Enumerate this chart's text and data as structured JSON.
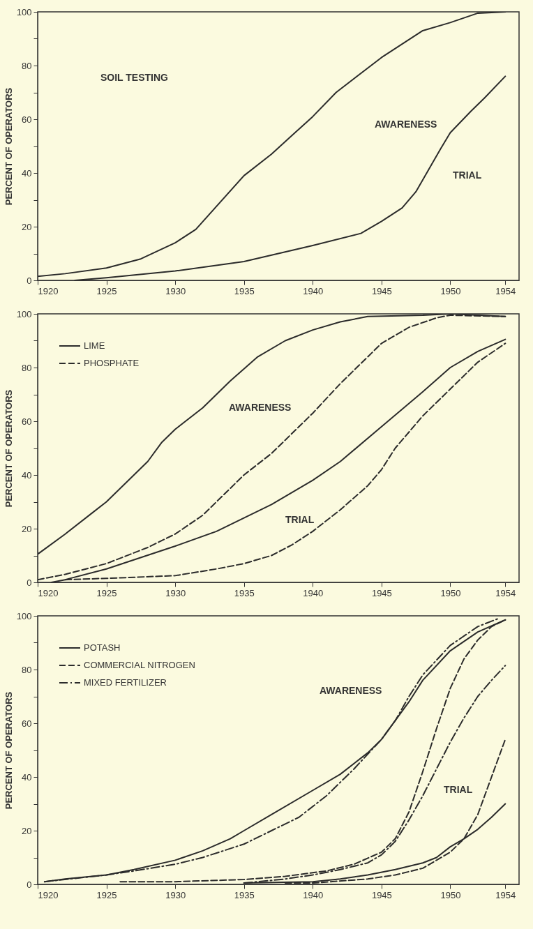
{
  "chart_data": [
    {
      "type": "line",
      "ylabel": "PERCENT OF OPERATORS",
      "xlim": [
        1920,
        1955
      ],
      "xticks": [
        1920,
        1925,
        1930,
        1935,
        1940,
        1945,
        1950,
        1954
      ],
      "ylim": [
        0,
        100
      ],
      "yticks": [
        0,
        {
          "value": 10,
          "label": null
        },
        20,
        {
          "value": 30,
          "label": null
        },
        40,
        {
          "value": 50,
          "label": null
        },
        60,
        {
          "value": 70,
          "label": null
        },
        80,
        {
          "value": 90,
          "label": null
        },
        100
      ],
      "annotations": [
        "SOIL TESTING",
        "AWARENESS",
        "TRIAL"
      ],
      "series": [
        {
          "color": "#2b2b2b",
          "line_style": "solid",
          "x": [
            1920,
            1922,
            1925,
            1927.5,
            1930,
            1931.5,
            1935,
            1937,
            1938.5,
            1940,
            1941.7,
            1945,
            1948,
            1950,
            1952,
            1954
          ],
          "values": [
            1.5,
            2.5,
            4.6,
            8,
            14,
            19,
            39,
            47,
            54,
            61,
            70,
            83,
            93,
            96,
            99.5,
            100
          ]
        },
        {
          "color": "#2b2b2b",
          "line_style": "solid",
          "x": [
            1922.7,
            1925,
            1930,
            1935,
            1940,
            1943.5,
            1945,
            1946.5,
            1947.5,
            1949.3,
            1950,
            1951.5,
            1952.5,
            1954
          ],
          "values": [
            0,
            1,
            3.5,
            7,
            13,
            17.5,
            22,
            27,
            33,
            49,
            55,
            63,
            68,
            76
          ]
        }
      ]
    },
    {
      "type": "line",
      "ylabel": "PERCENT OF OPERATORS",
      "legend": "top left",
      "xlim": [
        1920,
        1955
      ],
      "xticks": [
        1920,
        1925,
        1930,
        1935,
        1940,
        1945,
        1950,
        1954
      ],
      "ylim": [
        0,
        100
      ],
      "yticks": [
        0,
        {
          "value": 10,
          "label": null
        },
        20,
        {
          "value": 30,
          "label": null
        },
        40,
        {
          "value": 50,
          "label": null
        },
        60,
        {
          "value": 70,
          "label": null
        },
        80,
        {
          "value": 90,
          "label": null
        },
        100
      ],
      "annotations": [
        "AWARENESS",
        "TRIAL"
      ],
      "series": [
        {
          "name": "LIME",
          "color": "#2b2b2b",
          "line_style": "solid",
          "x": [
            1920,
            1922,
            1924,
            1925,
            1926,
            1928,
            1929,
            1930,
            1932,
            1934,
            1936,
            1938,
            1940,
            1942,
            1944,
            1948,
            1950,
            1954
          ],
          "values": [
            10.5,
            18,
            26,
            30,
            35,
            45,
            52,
            57,
            65,
            75,
            84,
            90,
            94,
            97,
            99,
            99.5,
            100,
            99
          ]
        },
        {
          "name": "PHOSPHATE",
          "color": "#2b2b2b",
          "line_style": "dashed",
          "x": [
            1920,
            1922,
            1925,
            1928,
            1930,
            1932,
            1934,
            1935,
            1937,
            1940,
            1942,
            1944,
            1945,
            1947,
            1949,
            1950,
            1954
          ],
          "values": [
            1,
            3,
            7,
            13,
            18,
            25,
            35,
            40,
            48,
            63,
            74,
            84,
            89,
            95,
            98.5,
            99.5,
            99
          ]
        },
        {
          "color": "#2b2b2b",
          "line_style": "solid",
          "x": [
            1921,
            1922,
            1925,
            1930,
            1933,
            1935,
            1937,
            1940,
            1942,
            1945,
            1948,
            1950,
            1952,
            1954
          ],
          "values": [
            0,
            1,
            5,
            13.5,
            19,
            24,
            29,
            38,
            45,
            58,
            71,
            80,
            86,
            90.5
          ]
        },
        {
          "color": "#2b2b2b",
          "line_style": "dashed",
          "x": [
            1922,
            1925,
            1930,
            1933,
            1935,
            1937,
            1938.5,
            1940,
            1942,
            1944,
            1945,
            1946,
            1948,
            1950,
            1952,
            1954
          ],
          "values": [
            1,
            1.5,
            2.5,
            5,
            7,
            10,
            14,
            19,
            27,
            36,
            42,
            50,
            62,
            72,
            82,
            89
          ]
        }
      ]
    },
    {
      "type": "line",
      "ylabel": "PERCENT OF OPERATORS",
      "legend": "top left",
      "xlim": [
        1920,
        1955
      ],
      "xticks": [
        1920,
        1925,
        1930,
        1935,
        1940,
        1945,
        1950,
        1954
      ],
      "ylim": [
        0,
        100
      ],
      "yticks": [
        0,
        {
          "value": 10,
          "label": null
        },
        20,
        {
          "value": 30,
          "label": null
        },
        40,
        {
          "value": 50,
          "label": null
        },
        60,
        {
          "value": 70,
          "label": null
        },
        80,
        {
          "value": 90,
          "label": null
        },
        100
      ],
      "annotations": [
        "AWARENESS",
        "TRIAL"
      ],
      "series": [
        {
          "name": "POTASH",
          "color": "#2b2b2b",
          "line_style": "solid",
          "x": [
            1920.5,
            1922,
            1925,
            1927,
            1930,
            1932,
            1934,
            1935,
            1937,
            1940,
            1942,
            1944,
            1945,
            1946,
            1947,
            1948,
            1950,
            1952,
            1954
          ],
          "values": [
            1,
            2,
            3.5,
            5.5,
            9,
            12.5,
            17,
            20,
            26,
            35,
            41,
            49,
            54,
            61,
            68,
            76,
            87,
            94,
            98.5
          ]
        },
        {
          "name": "COMMERCIAL NITROGEN",
          "color": "#2b2b2b",
          "line_style": "dashed",
          "x": [
            1926,
            1930,
            1935,
            1938,
            1941,
            1943,
            1945,
            1946,
            1947,
            1948,
            1949,
            1950,
            1951,
            1952,
            1953,
            1954
          ],
          "values": [
            1,
            1,
            1.8,
            3,
            5,
            7.5,
            12,
            17,
            27,
            42,
            58,
            73,
            84,
            91,
            96,
            98.5
          ]
        },
        {
          "name": "MIXED FERTILIZER",
          "color": "#2b2b2b",
          "line_style": "dashdot",
          "x": [
            1920.5,
            1925,
            1927,
            1930,
            1932,
            1935,
            1937,
            1939,
            1941,
            1943,
            1945,
            1946,
            1947,
            1948,
            1950,
            1952,
            1953.5
          ],
          "values": [
            1,
            3.5,
            5,
            7.5,
            10,
            15,
            20,
            25,
            33,
            43,
            54,
            61,
            70,
            78,
            89,
            96,
            99
          ]
        },
        {
          "color": "#2b2b2b",
          "line_style": "solid",
          "x": [
            1935,
            1940,
            1942,
            1944,
            1946,
            1948,
            1949,
            1950,
            1951,
            1952,
            1953,
            1954
          ],
          "values": [
            0.5,
            1,
            2,
            3.5,
            5.5,
            8,
            10,
            14,
            17,
            20.5,
            25,
            30
          ]
        },
        {
          "color": "#2b2b2b",
          "line_style": "dashed",
          "x": [
            1938,
            1940,
            1944,
            1946,
            1948,
            1949,
            1950,
            1951,
            1952,
            1953,
            1954
          ],
          "values": [
            0.5,
            0.5,
            2,
            3.5,
            6,
            9,
            12,
            17,
            26,
            40,
            54
          ]
        },
        {
          "color": "#2b2b2b",
          "line_style": "dashdot",
          "x": [
            1935,
            1938,
            1940,
            1942,
            1944,
            1945,
            1946,
            1947,
            1948,
            1949,
            1950,
            1951,
            1952,
            1953,
            1954
          ],
          "values": [
            0.5,
            2,
            3.5,
            5.5,
            8,
            11,
            16,
            24,
            33,
            43,
            53,
            62,
            70,
            76,
            81.5
          ]
        }
      ]
    }
  ]
}
